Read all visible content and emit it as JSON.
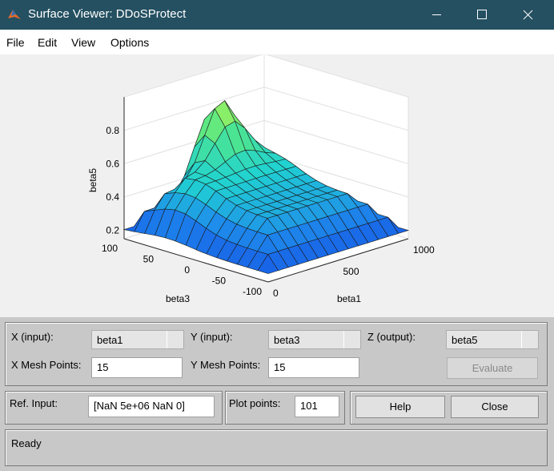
{
  "window": {
    "title": "Surface Viewer: DDoSProtect"
  },
  "menu": [
    "File",
    "Edit",
    "View",
    "Options"
  ],
  "plot": {
    "z_label": "beta5",
    "z_ticks": [
      "0.8",
      "0.6",
      "0.4",
      "0.2"
    ],
    "y_label": "beta3",
    "y_ticks": [
      "100",
      "50",
      "0",
      "-50",
      "-100"
    ],
    "x_label": "beta1",
    "x_ticks": [
      "0",
      "500",
      "1000"
    ]
  },
  "controls": {
    "x_input_label": "X (input):",
    "x_input_value": "beta1",
    "y_input_label": "Y (input):",
    "y_input_value": "beta3",
    "z_output_label": "Z (output):",
    "z_output_value": "beta5",
    "x_mesh_label": "X Mesh Points:",
    "x_mesh_value": "15",
    "y_mesh_label": "Y Mesh Points:",
    "y_mesh_value": "15",
    "evaluate_button": "Evaluate",
    "ref_input_label": "Ref. Input:",
    "ref_input_value": "[NaN 5e+06 NaN 0]",
    "plot_points_label": "Plot points:",
    "plot_points_value": "101",
    "help_button": "Help",
    "close_button": "Close"
  },
  "status": "Ready"
}
